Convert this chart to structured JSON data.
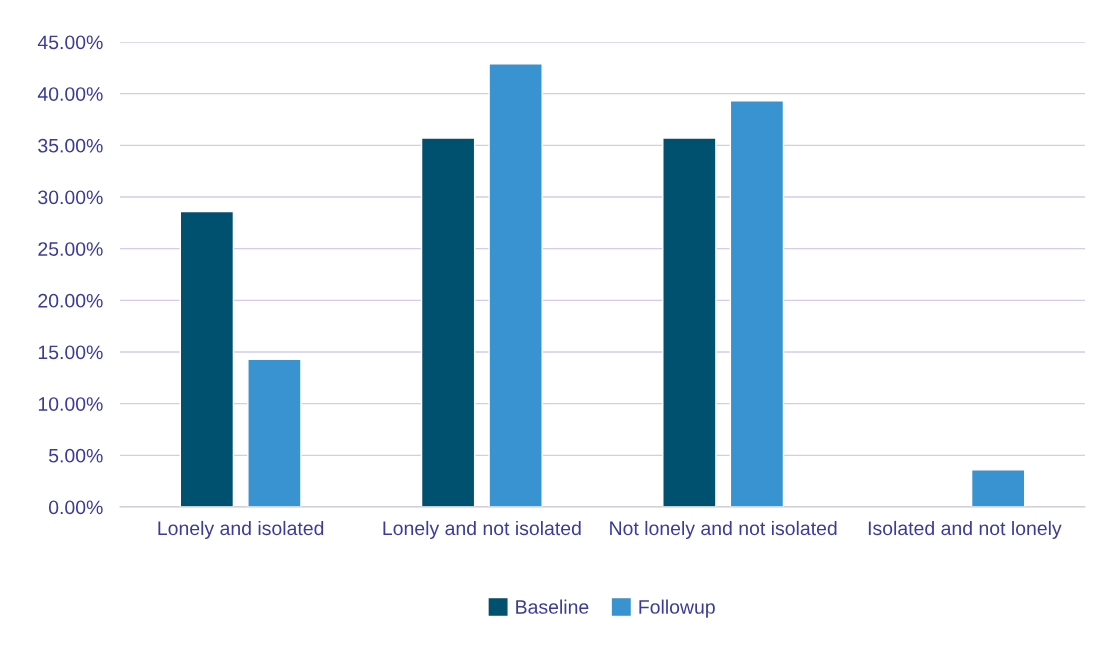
{
  "chart_data": {
    "type": "bar",
    "categories": [
      "Lonely and isolated",
      "Lonely and not isolated",
      "Not lonely and not isolated",
      "Isolated and not lonely"
    ],
    "series": [
      {
        "name": "Baseline",
        "color": "#00506f",
        "values": [
          28.6,
          35.7,
          35.7,
          null
        ]
      },
      {
        "name": "Followup",
        "color": "#3893d0",
        "values": [
          14.3,
          42.9,
          39.3,
          3.6
        ]
      }
    ],
    "ylim": [
      0,
      45
    ],
    "yticks": [
      {
        "value": 0,
        "label": "0.00%"
      },
      {
        "value": 5,
        "label": "5.00%"
      },
      {
        "value": 10,
        "label": "10.00%"
      },
      {
        "value": 15,
        "label": "15.00%"
      },
      {
        "value": 20,
        "label": "20.00%"
      },
      {
        "value": 25,
        "label": "25.00%"
      },
      {
        "value": 30,
        "label": "30.00%"
      },
      {
        "value": 35,
        "label": "35.00%"
      },
      {
        "value": 40,
        "label": "40.00%"
      },
      {
        "value": 45,
        "label": "45.00%"
      }
    ],
    "grid": "y",
    "legend": "bottom"
  }
}
